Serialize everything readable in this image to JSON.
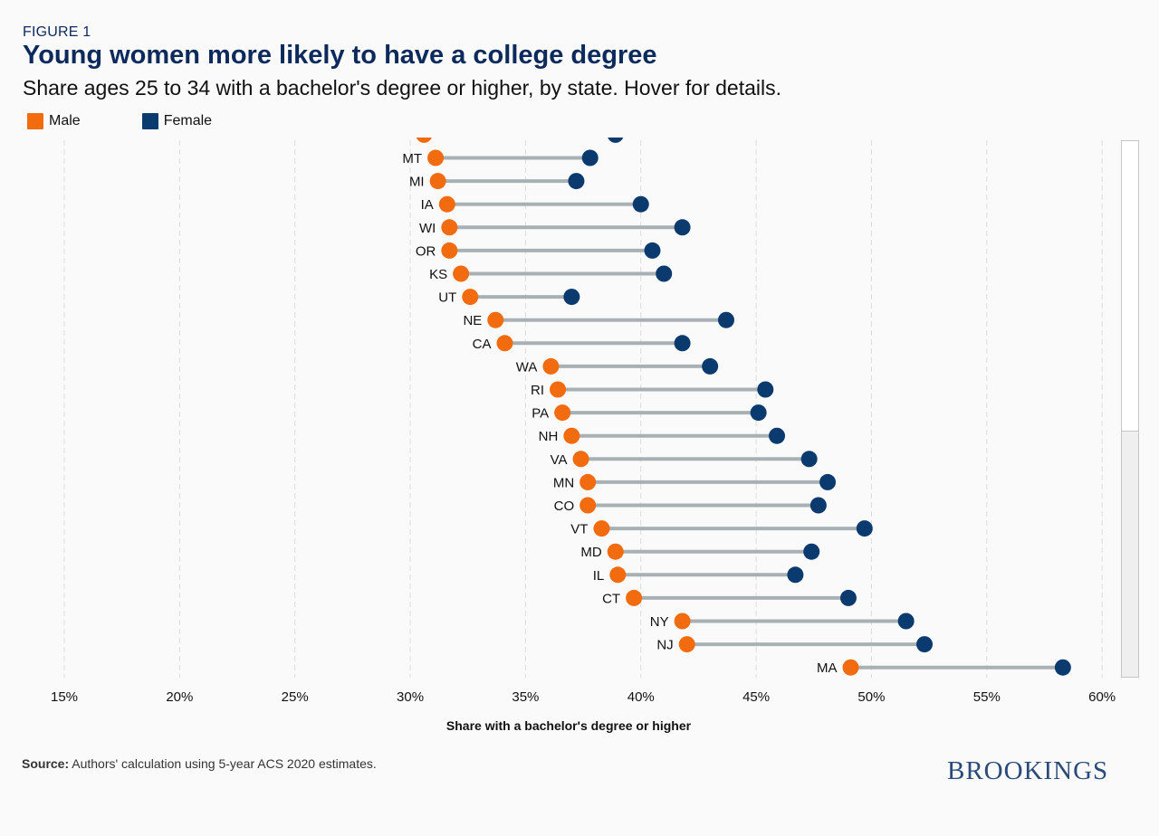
{
  "figure_label": "FIGURE 1",
  "title": "Young women more likely to have a college degree",
  "subtitle": "Share ages 25 to 34 with a bachelor's degree or higher, by state. Hover for details.",
  "legend": {
    "male": "Male",
    "female": "Female"
  },
  "colors": {
    "male": "#f26b0f",
    "female": "#0b3a6e",
    "connector": "#a9b0b3"
  },
  "source": {
    "label": "Source:",
    "text": " Authors' calculation using 5-year ACS 2020 estimates."
  },
  "logo_text": "BROOKINGS",
  "chart_data": {
    "type": "dumbbell",
    "title": "Young women more likely to have a college degree",
    "subtitle": "Share ages 25 to 34 with a bachelor's degree or higher, by state. Hover for details.",
    "xlabel": "Share with a bachelor's degree or higher",
    "ylabel": "",
    "xlim": [
      14,
      61
    ],
    "xticks": [
      15,
      20,
      25,
      30,
      35,
      40,
      45,
      50,
      55,
      60
    ],
    "tick_labels": [
      "15%",
      "20%",
      "25%",
      "30%",
      "35%",
      "40%",
      "45%",
      "50%",
      "55%",
      "60%"
    ],
    "grid": true,
    "legend_position": "top-left",
    "partial_top_row": {
      "male": 30.6,
      "female": 38.9
    },
    "categories": [
      "MT",
      "MI",
      "IA",
      "WI",
      "OR",
      "KS",
      "UT",
      "NE",
      "CA",
      "WA",
      "RI",
      "PA",
      "NH",
      "VA",
      "MN",
      "CO",
      "VT",
      "MD",
      "IL",
      "CT",
      "NY",
      "NJ",
      "MA"
    ],
    "series": [
      {
        "name": "Male",
        "values": [
          31.1,
          31.2,
          31.6,
          31.7,
          31.7,
          32.2,
          32.6,
          33.7,
          34.1,
          36.1,
          36.4,
          36.6,
          37.0,
          37.4,
          37.7,
          37.7,
          38.3,
          38.9,
          39.0,
          39.7,
          41.8,
          42.0,
          49.1
        ]
      },
      {
        "name": "Female",
        "values": [
          37.8,
          37.2,
          40.0,
          41.8,
          40.5,
          41.0,
          37.0,
          43.7,
          41.8,
          43.0,
          45.4,
          45.1,
          45.9,
          47.3,
          48.1,
          47.7,
          49.7,
          47.4,
          46.7,
          49.0,
          51.5,
          52.3,
          58.3
        ]
      }
    ]
  }
}
